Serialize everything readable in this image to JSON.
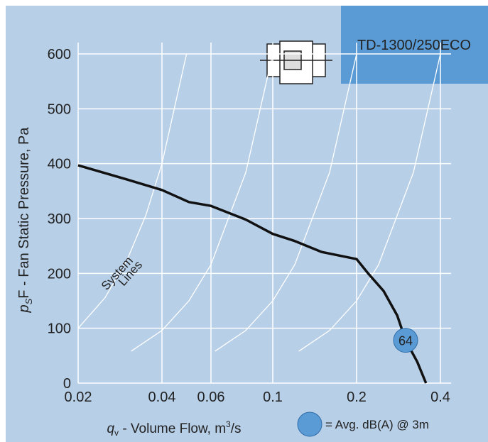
{
  "chart_data": {
    "type": "line",
    "title": "TD-1300/250ECO",
    "x_label": {
      "symbol": "q",
      "sub": "v",
      "text": " - Volume Flow, m",
      "sup": "3",
      "tail": "/s"
    },
    "y_label": {
      "symbol": "p",
      "sub": "S",
      "text": "F - Fan Static Pressure, Pa"
    },
    "x": [
      0.02,
      0.03,
      0.04,
      0.05,
      0.06,
      0.08,
      0.1,
      0.12,
      0.15,
      0.2,
      0.22,
      0.25,
      0.28,
      0.3,
      0.33,
      0.355
    ],
    "values": [
      397,
      371,
      352,
      330,
      323,
      298,
      272,
      259,
      239,
      226,
      200,
      168,
      123,
      78,
      39,
      0
    ],
    "color": "#111111",
    "system_lines": [
      {
        "x": [
          0.02,
          0.025,
          0.03,
          0.035,
          0.04,
          0.049
        ],
        "values": [
          100,
          156,
          225,
          306,
          400,
          600
        ]
      },
      {
        "x": [
          0.031,
          0.04,
          0.05,
          0.06,
          0.08,
          0.1
        ],
        "values": [
          58,
          96,
          150,
          216,
          384,
          600
        ]
      },
      {
        "x": [
          0.062,
          0.08,
          0.1,
          0.12,
          0.16,
          0.2
        ],
        "values": [
          58,
          96,
          150,
          216,
          384,
          600
        ]
      },
      {
        "x": [
          0.124,
          0.16,
          0.2,
          0.24,
          0.32,
          0.4
        ],
        "values": [
          58,
          96,
          150,
          216,
          384,
          600
        ]
      }
    ],
    "system_lines_label": [
      "System",
      "Lines"
    ],
    "noise_point": {
      "x": 0.3,
      "y": 78,
      "label": "64"
    },
    "legend_text": "= Avg. dB(A) @ 3m",
    "marker_color": "#5b9bd5",
    "log_x": true,
    "xlim": [
      0.02,
      0.4
    ],
    "xticks": [
      0.02,
      0.04,
      0.06,
      0.1,
      0.2,
      0.4
    ],
    "ylim": [
      0,
      600
    ],
    "yticks": [
      0,
      100,
      200,
      300,
      400,
      500,
      600
    ],
    "grid": true
  }
}
